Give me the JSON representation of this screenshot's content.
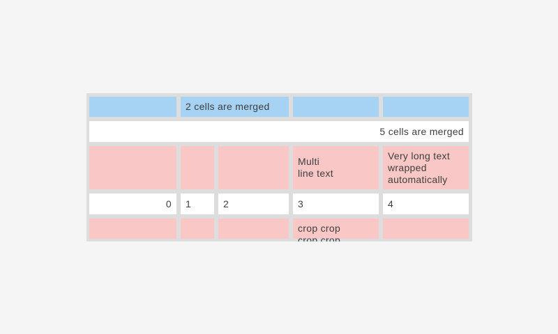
{
  "page": {
    "background_color": "#f5f5f5"
  },
  "table_widget": {
    "colors": {
      "frame_gray": "#dddddd",
      "merged_header_blue": "#a6d3f3",
      "highlight_pink": "#f9c8c6",
      "cell_white": "#ffffff",
      "text": "#3e3e3e"
    },
    "column_count": 5,
    "rows": [
      {
        "description": "blue header row with two merged cells",
        "cells": [
          {
            "text": ""
          },
          {
            "text": "2 cells are merged",
            "span": 2,
            "align": "left"
          },
          {
            "text": ""
          },
          {
            "text": ""
          }
        ]
      },
      {
        "description": "white row merged across all five columns",
        "cells": [
          {
            "text": "5 cells are merged",
            "span": 5,
            "align": "right"
          }
        ]
      },
      {
        "description": "pink row with multi-line and auto-wrapped text",
        "cells": [
          {
            "text": ""
          },
          {
            "text": ""
          },
          {
            "text": ""
          },
          {
            "text": "Multi\nline text"
          },
          {
            "text": "Very long text wrapped automatically"
          }
        ]
      },
      {
        "description": "white row of column index numbers",
        "cells": [
          {
            "text": "0",
            "align": "right"
          },
          {
            "text": "1",
            "align": "left"
          },
          {
            "text": "2",
            "align": "left"
          },
          {
            "text": "3",
            "align": "left"
          },
          {
            "text": "4",
            "align": "left"
          }
        ]
      },
      {
        "description": "pink row with cropped overflowing text",
        "cells": [
          {
            "text": ""
          },
          {
            "text": ""
          },
          {
            "text": ""
          },
          {
            "text": "crop crop crop crop",
            "cropped": true
          },
          {
            "text": ""
          }
        ]
      }
    ]
  }
}
